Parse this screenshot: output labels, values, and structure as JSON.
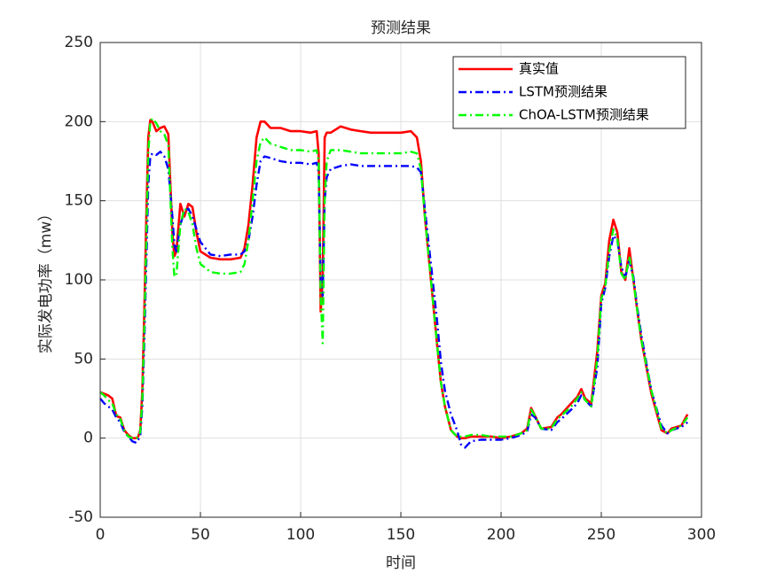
{
  "chart_data": {
    "type": "line",
    "title": "预测结果",
    "xlabel": "时间",
    "ylabel": "实际发电功率（mw）",
    "xlim": [
      0,
      300
    ],
    "ylim": [
      -50,
      250
    ],
    "xticks": [
      0,
      50,
      100,
      150,
      200,
      250,
      300
    ],
    "yticks": [
      -50,
      0,
      50,
      100,
      150,
      200,
      250
    ],
    "grid": true,
    "legend_location": "northeast",
    "x": [
      0,
      2,
      4,
      6,
      8,
      10,
      12,
      14,
      16,
      18,
      19,
      20,
      21,
      22,
      23,
      24,
      25,
      26,
      28,
      30,
      32,
      34,
      36,
      37,
      38,
      40,
      42,
      44,
      46,
      48,
      50,
      55,
      60,
      65,
      70,
      72,
      74,
      76,
      78,
      80,
      82,
      85,
      90,
      95,
      100,
      105,
      108,
      109,
      110,
      111,
      112,
      113,
      115,
      120,
      125,
      130,
      135,
      140,
      145,
      150,
      155,
      158,
      160,
      162,
      165,
      168,
      170,
      172,
      175,
      178,
      180,
      182,
      185,
      190,
      195,
      200,
      205,
      210,
      213,
      215,
      217,
      220,
      225,
      228,
      230,
      235,
      238,
      240,
      242,
      245,
      248,
      250,
      252,
      254,
      256,
      258,
      260,
      262,
      264,
      266,
      268,
      270,
      275,
      280,
      283,
      285,
      290,
      293
    ],
    "series": [
      {
        "name": "真实值",
        "color": "#ff0000",
        "line_style": "solid",
        "values": [
          29,
          28,
          27,
          25,
          14,
          13,
          5,
          2,
          0,
          0,
          1,
          5,
          30,
          80,
          140,
          190,
          201,
          200,
          194,
          196,
          197,
          192,
          130,
          115,
          118,
          148,
          140,
          148,
          146,
          130,
          118,
          114,
          113,
          113,
          114,
          120,
          135,
          160,
          190,
          200,
          200,
          196,
          196,
          194,
          194,
          193,
          194,
          180,
          80,
          100,
          190,
          193,
          193,
          197,
          195,
          194,
          193,
          193,
          193,
          193,
          194,
          190,
          175,
          140,
          100,
          60,
          35,
          20,
          5,
          1,
          0,
          0,
          1,
          1,
          1,
          0,
          1,
          3,
          6,
          19,
          14,
          6,
          7,
          13,
          15,
          22,
          26,
          31,
          25,
          22,
          55,
          90,
          98,
          125,
          138,
          130,
          105,
          100,
          120,
          100,
          80,
          62,
          28,
          5,
          3,
          6,
          8,
          15
        ]
      },
      {
        "name": "LSTM预测结果",
        "color": "#0000ff",
        "line_style": "dashdot",
        "values": [
          25,
          22,
          20,
          18,
          13,
          10,
          4,
          1,
          -2,
          -3,
          -1,
          2,
          20,
          60,
          110,
          160,
          178,
          180,
          179,
          181,
          178,
          170,
          140,
          122,
          118,
          135,
          143,
          145,
          140,
          132,
          124,
          116,
          115,
          116,
          116,
          118,
          125,
          140,
          160,
          175,
          178,
          177,
          175,
          174,
          174,
          173,
          174,
          168,
          100,
          90,
          150,
          165,
          170,
          172,
          173,
          172,
          172,
          172,
          172,
          172,
          172,
          171,
          168,
          145,
          110,
          75,
          48,
          30,
          15,
          5,
          -4,
          -6,
          -2,
          -1,
          -1,
          -1,
          0,
          2,
          4,
          15,
          13,
          6,
          5,
          10,
          12,
          18,
          22,
          27,
          24,
          20,
          45,
          85,
          95,
          115,
          128,
          125,
          108,
          102,
          112,
          102,
          82,
          65,
          30,
          8,
          3,
          5,
          7,
          10
        ]
      },
      {
        "name": "ChOA-LSTM预测结果",
        "color": "#00ff00",
        "line_style": "dashdot",
        "values": [
          29,
          27,
          24,
          22,
          15,
          12,
          5,
          1,
          0,
          0,
          1,
          4,
          25,
          70,
          125,
          180,
          200,
          202,
          199,
          194,
          192,
          185,
          120,
          102,
          103,
          135,
          145,
          143,
          135,
          120,
          110,
          105,
          104,
          104,
          105,
          110,
          125,
          150,
          175,
          187,
          190,
          186,
          184,
          182,
          182,
          181,
          182,
          175,
          90,
          60,
          150,
          175,
          182,
          182,
          181,
          180,
          180,
          180,
          180,
          180,
          181,
          180,
          170,
          140,
          100,
          60,
          35,
          20,
          5,
          1,
          1,
          1,
          2,
          2,
          1,
          1,
          1,
          3,
          5,
          18,
          14,
          6,
          6,
          12,
          14,
          20,
          25,
          29,
          24,
          20,
          50,
          88,
          96,
          118,
          132,
          126,
          104,
          100,
          115,
          100,
          80,
          62,
          30,
          6,
          3,
          5,
          8,
          13
        ]
      }
    ]
  }
}
